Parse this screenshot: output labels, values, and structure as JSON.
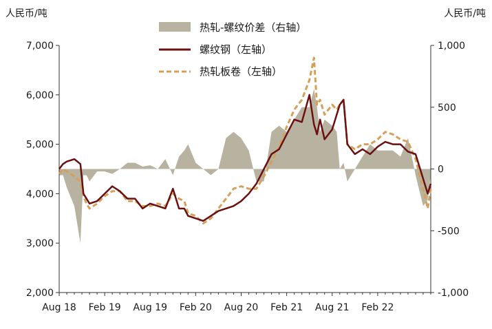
{
  "chart_data": {
    "type": "line",
    "left_unit": "人民币/吨",
    "right_unit": "人民币/吨",
    "left_axis": {
      "min": 2000,
      "max": 7000,
      "ticks": [
        "2,000",
        "3,000",
        "4,000",
        "5,000",
        "6,000",
        "7,000"
      ],
      "tick_values": [
        2000,
        3000,
        4000,
        5000,
        6000,
        7000
      ]
    },
    "right_axis": {
      "min": -1000,
      "max": 1000,
      "ticks": [
        "-1,000",
        "-500",
        "0",
        "500",
        "1,000"
      ],
      "tick_values": [
        -1000,
        -500,
        0,
        500,
        1000
      ]
    },
    "x_axis": {
      "min": 0,
      "max": 49,
      "ticks": [
        "Aug 18",
        "Feb 19",
        "Aug 19",
        "Feb 20",
        "Aug 20",
        "Feb 21",
        "Aug 21",
        "Feb 22"
      ],
      "tick_months": [
        0,
        6,
        12,
        18,
        24,
        30,
        36,
        42
      ]
    },
    "legend": [
      {
        "name": "热轧-螺纹价差（右轴）",
        "kind": "area",
        "color": "#b7b3a0"
      },
      {
        "name": "螺纹钢（左轴）",
        "kind": "line",
        "color": "#6b0f12"
      },
      {
        "name": "热轧板卷（左轴）",
        "kind": "dash",
        "color": "#d4a05a"
      }
    ],
    "series": [
      {
        "name": "螺纹钢（左轴）",
        "axis": "left",
        "x": [
          0,
          0.5,
          1,
          2,
          2.8,
          3.2,
          3.6,
          4,
          5,
          6,
          7,
          8,
          9,
          10,
          11,
          12,
          13,
          14,
          15,
          15.8,
          16.5,
          17,
          18,
          19,
          20,
          21,
          22,
          23,
          24,
          25,
          26,
          27,
          28,
          29,
          30,
          31,
          32,
          33,
          33.6,
          34,
          34.4,
          35,
          36,
          36.6,
          37,
          37.5,
          38,
          39,
          40,
          41,
          42,
          43,
          44,
          45,
          46,
          47,
          48,
          48.6,
          49
        ],
        "values": [
          4500,
          4600,
          4650,
          4700,
          4600,
          4000,
          3900,
          3800,
          3850,
          4000,
          4150,
          4050,
          3900,
          3900,
          3700,
          3800,
          3750,
          3700,
          4100,
          3700,
          3700,
          3550,
          3500,
          3450,
          3550,
          3650,
          3700,
          3750,
          3850,
          4000,
          4200,
          4500,
          4800,
          4900,
          5200,
          5500,
          5450,
          6000,
          5400,
          5200,
          5500,
          5100,
          5300,
          5600,
          5800,
          5900,
          5000,
          4800,
          4900,
          4800,
          4950,
          5050,
          5000,
          5000,
          4850,
          4800,
          4300,
          4000,
          4200
        ]
      },
      {
        "name": "热轧板卷（左轴）",
        "axis": "left",
        "x": [
          0,
          0.5,
          1,
          2,
          2.8,
          3.2,
          3.6,
          4,
          5,
          6,
          7,
          8,
          9,
          10,
          11,
          12,
          13,
          14,
          15,
          15.8,
          16.5,
          17,
          18,
          19,
          20,
          21,
          22,
          23,
          24,
          25,
          26,
          27,
          28,
          29,
          30,
          31,
          32,
          33,
          33.6,
          34,
          34.4,
          35,
          36,
          36.6,
          37,
          37.5,
          38,
          39,
          40,
          41,
          42,
          43,
          44,
          45,
          46,
          47,
          48,
          48.6,
          49
        ],
        "values": [
          4400,
          4500,
          4450,
          4350,
          4250,
          3950,
          3800,
          3700,
          3800,
          3950,
          4050,
          4050,
          3850,
          3850,
          3750,
          3750,
          3800,
          3750,
          4000,
          3900,
          3850,
          3600,
          3550,
          3400,
          3500,
          3700,
          3900,
          4100,
          4150,
          4100,
          4100,
          4350,
          4650,
          4950,
          5350,
          5700,
          5900,
          6300,
          6750,
          5800,
          5900,
          5600,
          5800,
          5700,
          5800,
          5900,
          5000,
          4900,
          5000,
          5000,
          5100,
          5250,
          5200,
          5100,
          5050,
          4700,
          4100,
          3700,
          4100
        ]
      },
      {
        "name": "热轧-螺纹价差（右轴）",
        "axis": "right",
        "x": [
          0,
          0.5,
          1,
          2,
          2.8,
          3.2,
          3.6,
          4,
          5,
          6,
          7,
          8,
          9,
          10,
          11,
          12,
          13,
          14,
          15,
          15.8,
          16.5,
          17,
          18,
          19,
          20,
          21,
          22,
          23,
          24,
          25,
          26,
          27,
          28,
          29,
          30,
          31,
          32,
          33,
          33.6,
          34,
          34.4,
          35,
          36,
          36.6,
          37,
          37.5,
          38,
          39,
          40,
          41,
          42,
          43,
          44,
          45,
          46,
          47,
          48,
          48.6,
          49
        ],
        "values": [
          -50,
          -50,
          -150,
          -300,
          -600,
          -50,
          -50,
          -100,
          -20,
          -20,
          -40,
          0,
          50,
          50,
          20,
          30,
          0,
          80,
          -50,
          100,
          150,
          200,
          50,
          0,
          -50,
          0,
          250,
          300,
          250,
          150,
          -100,
          -100,
          300,
          350,
          300,
          400,
          500,
          500,
          650,
          500,
          300,
          400,
          350,
          300,
          0,
          50,
          -100,
          0,
          100,
          200,
          150,
          150,
          150,
          100,
          250,
          -50,
          -300,
          -250,
          -50
        ]
      }
    ]
  }
}
